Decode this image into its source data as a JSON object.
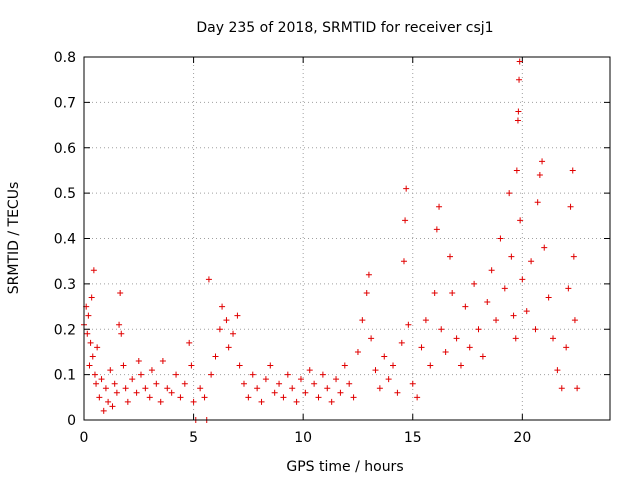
{
  "chart_data": {
    "type": "scatter",
    "title": "Day 235 of 2018, SRMTID for receiver csj1",
    "xlabel": "GPS time / hours",
    "ylabel": "SRMTID / TECUs",
    "xlim": [
      0,
      24
    ],
    "ylim": [
      0,
      0.8
    ],
    "xticks": [
      "0",
      "5",
      "10",
      "15",
      "20"
    ],
    "xtick_values": [
      0,
      5,
      10,
      15,
      20
    ],
    "yticks": [
      "0",
      "0.1",
      "0.2",
      "0.3",
      "0.4",
      "0.5",
      "0.6",
      "0.7",
      "0.8"
    ],
    "ytick_values": [
      0,
      0.1,
      0.2,
      0.3,
      0.4,
      0.5,
      0.6,
      0.7,
      0.8
    ],
    "grid": true,
    "marker": "+",
    "color": "#e00000",
    "series": [
      {
        "name": "SRMTID",
        "points": [
          [
            0.0,
            0.21
          ],
          [
            0.1,
            0.25
          ],
          [
            0.15,
            0.19
          ],
          [
            0.2,
            0.23
          ],
          [
            0.25,
            0.12
          ],
          [
            0.3,
            0.17
          ],
          [
            0.35,
            0.27
          ],
          [
            0.4,
            0.14
          ],
          [
            0.45,
            0.33
          ],
          [
            0.5,
            0.1
          ],
          [
            0.55,
            0.08
          ],
          [
            0.6,
            0.16
          ],
          [
            0.7,
            0.05
          ],
          [
            0.8,
            0.09
          ],
          [
            0.9,
            0.02
          ],
          [
            1.0,
            0.07
          ],
          [
            1.1,
            0.04
          ],
          [
            1.2,
            0.11
          ],
          [
            1.3,
            0.03
          ],
          [
            1.4,
            0.08
          ],
          [
            1.5,
            0.06
          ],
          [
            1.6,
            0.21
          ],
          [
            1.65,
            0.28
          ],
          [
            1.7,
            0.19
          ],
          [
            1.8,
            0.12
          ],
          [
            1.9,
            0.07
          ],
          [
            2.0,
            0.04
          ],
          [
            2.2,
            0.09
          ],
          [
            2.4,
            0.06
          ],
          [
            2.5,
            0.13
          ],
          [
            2.6,
            0.1
          ],
          [
            2.8,
            0.07
          ],
          [
            3.0,
            0.05
          ],
          [
            3.1,
            0.11
          ],
          [
            3.3,
            0.08
          ],
          [
            3.5,
            0.04
          ],
          [
            3.6,
            0.13
          ],
          [
            3.8,
            0.07
          ],
          [
            4.0,
            0.06
          ],
          [
            4.2,
            0.1
          ],
          [
            4.4,
            0.05
          ],
          [
            4.6,
            0.08
          ],
          [
            4.8,
            0.17
          ],
          [
            4.9,
            0.12
          ],
          [
            5.0,
            0.04
          ],
          [
            5.1,
            0.0
          ],
          [
            5.3,
            0.07
          ],
          [
            5.5,
            0.05
          ],
          [
            5.6,
            0.0
          ],
          [
            5.7,
            0.31
          ],
          [
            5.8,
            0.1
          ],
          [
            6.0,
            0.14
          ],
          [
            6.2,
            0.2
          ],
          [
            6.3,
            0.25
          ],
          [
            6.5,
            0.22
          ],
          [
            6.6,
            0.16
          ],
          [
            6.8,
            0.19
          ],
          [
            7.0,
            0.23
          ],
          [
            7.1,
            0.12
          ],
          [
            7.3,
            0.08
          ],
          [
            7.5,
            0.05
          ],
          [
            7.7,
            0.1
          ],
          [
            7.9,
            0.07
          ],
          [
            8.1,
            0.04
          ],
          [
            8.3,
            0.09
          ],
          [
            8.5,
            0.12
          ],
          [
            8.7,
            0.06
          ],
          [
            8.9,
            0.08
          ],
          [
            9.1,
            0.05
          ],
          [
            9.3,
            0.1
          ],
          [
            9.5,
            0.07
          ],
          [
            9.7,
            0.04
          ],
          [
            9.9,
            0.09
          ],
          [
            10.1,
            0.06
          ],
          [
            10.3,
            0.11
          ],
          [
            10.5,
            0.08
          ],
          [
            10.7,
            0.05
          ],
          [
            10.9,
            0.1
          ],
          [
            11.1,
            0.07
          ],
          [
            11.3,
            0.04
          ],
          [
            11.5,
            0.09
          ],
          [
            11.7,
            0.06
          ],
          [
            11.9,
            0.12
          ],
          [
            12.1,
            0.08
          ],
          [
            12.3,
            0.05
          ],
          [
            12.5,
            0.15
          ],
          [
            12.7,
            0.22
          ],
          [
            12.9,
            0.28
          ],
          [
            13.0,
            0.32
          ],
          [
            13.1,
            0.18
          ],
          [
            13.3,
            0.11
          ],
          [
            13.5,
            0.07
          ],
          [
            13.7,
            0.14
          ],
          [
            13.9,
            0.09
          ],
          [
            14.1,
            0.12
          ],
          [
            14.3,
            0.06
          ],
          [
            14.5,
            0.17
          ],
          [
            14.6,
            0.35
          ],
          [
            14.65,
            0.44
          ],
          [
            14.7,
            0.51
          ],
          [
            14.8,
            0.21
          ],
          [
            15.0,
            0.08
          ],
          [
            15.2,
            0.05
          ],
          [
            15.4,
            0.16
          ],
          [
            15.6,
            0.22
          ],
          [
            15.8,
            0.12
          ],
          [
            16.0,
            0.28
          ],
          [
            16.1,
            0.42
          ],
          [
            16.2,
            0.47
          ],
          [
            16.3,
            0.2
          ],
          [
            16.5,
            0.15
          ],
          [
            16.7,
            0.36
          ],
          [
            16.8,
            0.28
          ],
          [
            17.0,
            0.18
          ],
          [
            17.2,
            0.12
          ],
          [
            17.4,
            0.25
          ],
          [
            17.6,
            0.16
          ],
          [
            17.8,
            0.3
          ],
          [
            18.0,
            0.2
          ],
          [
            18.2,
            0.14
          ],
          [
            18.4,
            0.26
          ],
          [
            18.6,
            0.33
          ],
          [
            18.8,
            0.22
          ],
          [
            19.0,
            0.4
          ],
          [
            19.2,
            0.29
          ],
          [
            19.4,
            0.5
          ],
          [
            19.5,
            0.36
          ],
          [
            19.6,
            0.23
          ],
          [
            19.7,
            0.18
          ],
          [
            19.75,
            0.55
          ],
          [
            19.8,
            0.66
          ],
          [
            19.82,
            0.68
          ],
          [
            19.85,
            0.75
          ],
          [
            19.88,
            0.79
          ],
          [
            19.9,
            0.44
          ],
          [
            20.0,
            0.31
          ],
          [
            20.2,
            0.24
          ],
          [
            20.4,
            0.35
          ],
          [
            20.6,
            0.2
          ],
          [
            20.7,
            0.48
          ],
          [
            20.8,
            0.54
          ],
          [
            20.9,
            0.57
          ],
          [
            21.0,
            0.38
          ],
          [
            21.2,
            0.27
          ],
          [
            21.4,
            0.18
          ],
          [
            21.6,
            0.11
          ],
          [
            21.8,
            0.07
          ],
          [
            22.0,
            0.16
          ],
          [
            22.1,
            0.29
          ],
          [
            22.2,
            0.47
          ],
          [
            22.3,
            0.55
          ],
          [
            22.35,
            0.36
          ],
          [
            22.4,
            0.22
          ],
          [
            22.5,
            0.07
          ]
        ]
      }
    ]
  }
}
